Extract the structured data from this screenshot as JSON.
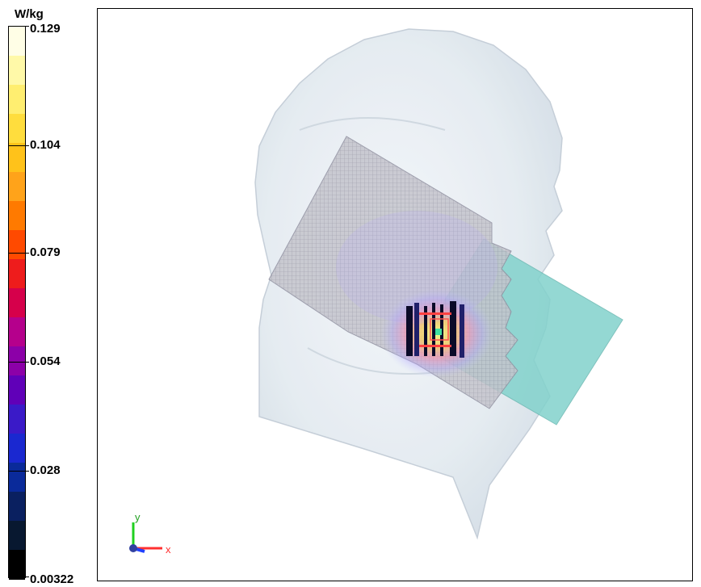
{
  "legend": {
    "unit": "W/kg",
    "ticks": [
      {
        "label": "0.129"
      },
      {
        "label": "0.104"
      },
      {
        "label": "0.079"
      },
      {
        "label": "0.054"
      },
      {
        "label": "0.028"
      },
      {
        "label": "0.00322"
      }
    ],
    "colors_top_to_bottom": [
      "#fffee6",
      "#fff9a8",
      "#ffee70",
      "#ffdd3d",
      "#ffc21a",
      "#ffa31a",
      "#ff7a00",
      "#ff4a00",
      "#ee1c1c",
      "#d6004b",
      "#b5008c",
      "#8c00a8",
      "#6000b8",
      "#3a1ac8",
      "#1a28d0",
      "#0a2a9a",
      "#0a2060",
      "#081830",
      "#000000"
    ]
  },
  "viewport": {
    "axes": {
      "x_label": "x",
      "y_label": "y"
    },
    "colors": {
      "head": "#dde6ee",
      "head_edge": "#c8d3dd",
      "grid_plane": "#b8b8c4",
      "teal_plate": "#82d2cc",
      "phone_dark": "#0a0a28",
      "axis_x": "#ff3030",
      "axis_y": "#20d020",
      "axis_z": "#2040ff"
    }
  }
}
